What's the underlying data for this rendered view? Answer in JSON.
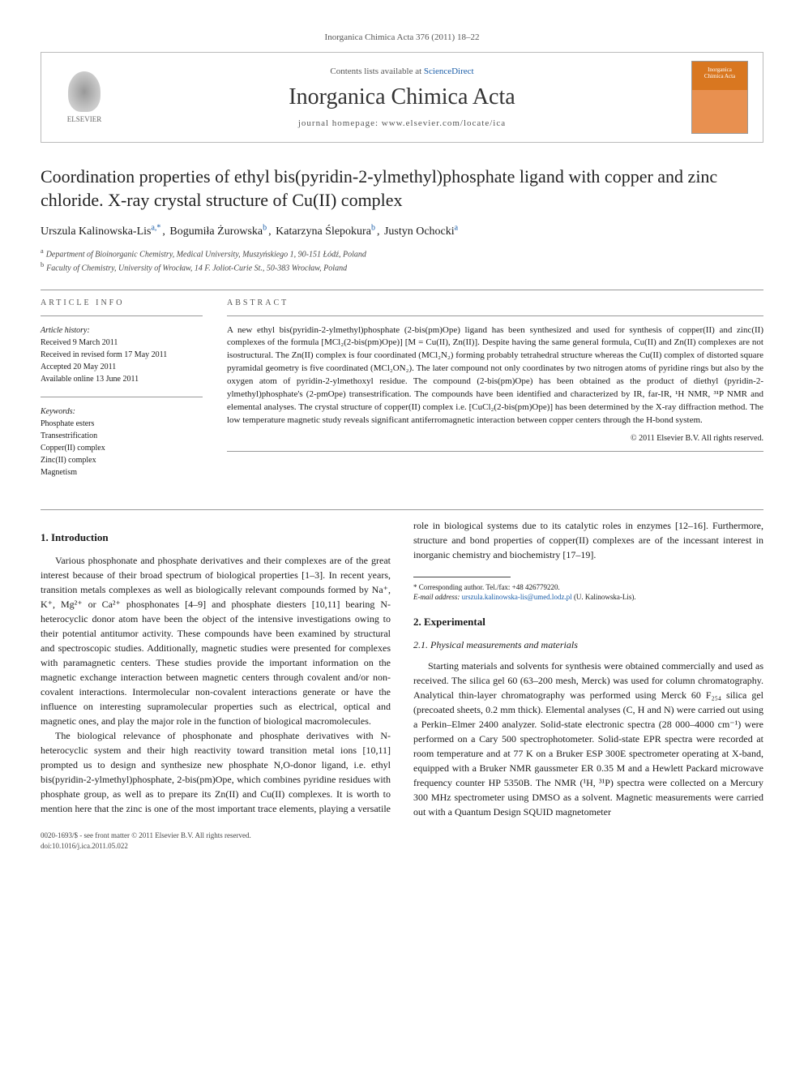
{
  "journal_ref": "Inorganica Chimica Acta 376 (2011) 18–22",
  "header": {
    "contents_prefix": "Contents lists available at ",
    "contents_link": "ScienceDirect",
    "journal_name": "Inorganica Chimica Acta",
    "homepage_prefix": "journal homepage: ",
    "homepage_url": "www.elsevier.com/locate/ica",
    "publisher_logo_label": "ELSEVIER",
    "cover_label_line1": "Inorganica",
    "cover_label_line2": "Chimica Acta"
  },
  "title": "Coordination properties of ethyl bis(pyridin-2-ylmethyl)phosphate ligand with copper and zinc chloride. X-ray crystal structure of Cu(II) complex",
  "authors": [
    {
      "name": "Urszula Kalinowska-Lis",
      "aff": "a,",
      "corr": "*"
    },
    {
      "name": "Bogumiła Żurowska",
      "aff": "b"
    },
    {
      "name": "Katarzyna Ślepokura",
      "aff": "b"
    },
    {
      "name": "Justyn Ochocki",
      "aff": "a"
    }
  ],
  "affiliations": [
    {
      "label": "a",
      "text": "Department of Bioinorganic Chemistry, Medical University, Muszyńskiego 1, 90-151 Łódź, Poland"
    },
    {
      "label": "b",
      "text": "Faculty of Chemistry, University of Wrocław, 14 F. Joliot-Curie St., 50-383 Wrocław, Poland"
    }
  ],
  "article_info": {
    "label": "ARTICLE INFO",
    "history_label": "Article history:",
    "history": [
      "Received 9 March 2011",
      "Received in revised form 17 May 2011",
      "Accepted 20 May 2011",
      "Available online 13 June 2011"
    ],
    "keywords_label": "Keywords:",
    "keywords": [
      "Phosphate esters",
      "Transestrification",
      "Copper(II) complex",
      "Zinc(II) complex",
      "Magnetism"
    ]
  },
  "abstract": {
    "label": "ABSTRACT",
    "text": "A new ethyl bis(pyridin-2-ylmethyl)phosphate (2-bis(pm)Ope) ligand has been synthesized and used for synthesis of copper(II) and zinc(II) complexes of the formula [MCl₂(2-bis(pm)Ope)] [M = Cu(II), Zn(II)]. Despite having the same general formula, Cu(II) and Zn(II) complexes are not isostructural. The Zn(II) complex is four coordinated (MCl₂N₂) forming probably tetrahedral structure whereas the Cu(II) complex of distorted square pyramidal geometry is five coordinated (MCl₂ON₂). The later compound not only coordinates by two nitrogen atoms of pyridine rings but also by the oxygen atom of pyridin-2-ylmethoxyl residue. The compound (2-bis(pm)Ope) has been obtained as the product of diethyl (pyridin-2-ylmethyl)phosphate's (2-pmOpe) transestrification. The compounds have been identified and characterized by IR, far-IR, ¹H NMR, ³¹P NMR and elemental analyses. The crystal structure of copper(II) complex i.e. [CuCl₂(2-bis(pm)Ope)] has been determined by the X-ray diffraction method. The low temperature magnetic study reveals significant antiferromagnetic interaction between copper centers through the H-bond system.",
    "copyright": "© 2011 Elsevier B.V. All rights reserved."
  },
  "sections": {
    "intro_heading": "1. Introduction",
    "intro_p1": "Various phosphonate and phosphate derivatives and their complexes are of the great interest because of their broad spectrum of biological properties [1–3]. In recent years, transition metals complexes as well as biologically relevant compounds formed by Na⁺, K⁺, Mg²⁺ or Ca²⁺ phosphonates [4–9] and phosphate diesters [10,11] bearing N-heterocyclic donor atom have been the object of the intensive investigations owing to their potential antitumor activity. These compounds have been examined by structural and spectroscopic studies. Additionally, magnetic studies were presented for complexes with paramagnetic centers. These studies provide the important information on the magnetic exchange interaction between magnetic centers through covalent and/or non-covalent interactions. Intermolecular non-covalent interactions generate or have the influence on interesting supramolecular properties such as electrical, optical and magnetic ones, and play the major role in the function of biological macromolecules.",
    "intro_p2": "The biological relevance of phosphonate and phosphate derivatives with N-heterocyclic system and their high reactivity toward transition metal ions [10,11] prompted us to design and synthesize new phosphate N,O-donor ligand, i.e. ethyl bis(pyridin-2-ylmethyl)phosphate, 2-bis(pm)Ope, which combines pyridine residues with phosphate group, as well as to prepare its Zn(II) and Cu(II) complexes. It is worth to mention here that the zinc is one of the most important trace elements, playing a versatile role in biological systems due to its catalytic roles in enzymes [12–16]. Furthermore, structure and bond properties of copper(II) complexes are of the incessant interest in inorganic chemistry and biochemistry [17–19].",
    "exp_heading": "2. Experimental",
    "exp_sub_heading": "2.1. Physical measurements and materials",
    "exp_p1": "Starting materials and solvents for synthesis were obtained commercially and used as received. The silica gel 60 (63–200 mesh, Merck) was used for column chromatography. Analytical thin-layer chromatography was performed using Merck 60 F₂₅₄ silica gel (precoated sheets, 0.2 mm thick). Elemental analyses (C, H and N) were carried out using a Perkin–Elmer 2400 analyzer. Solid-state electronic spectra (28 000–4000 cm⁻¹) were performed on a Cary 500 spectrophotometer. Solid-state EPR spectra were recorded at room temperature and at 77 K on a Bruker ESP 300E spectrometer operating at X-band, equipped with a Bruker NMR gaussmeter ER 0.35 M and a Hewlett Packard microwave frequency counter HP 5350B. The NMR (¹H, ³¹P) spectra were collected on a Mercury 300 MHz spectrometer using DMSO as a solvent. Magnetic measurements were carried out with a Quantum Design SQUID magnetometer"
  },
  "footnote": {
    "corr_label": "* Corresponding author. Tel./fax: +48 426779220.",
    "email_label": "E-mail address:",
    "email": "urszula.kalinowska-lis@umed.lodz.pl",
    "email_person": "(U. Kalinowska-Lis)."
  },
  "bottom": {
    "issn_line": "0020-1693/$ - see front matter © 2011 Elsevier B.V. All rights reserved.",
    "doi_line": "doi:10.1016/j.ica.2011.05.022"
  }
}
